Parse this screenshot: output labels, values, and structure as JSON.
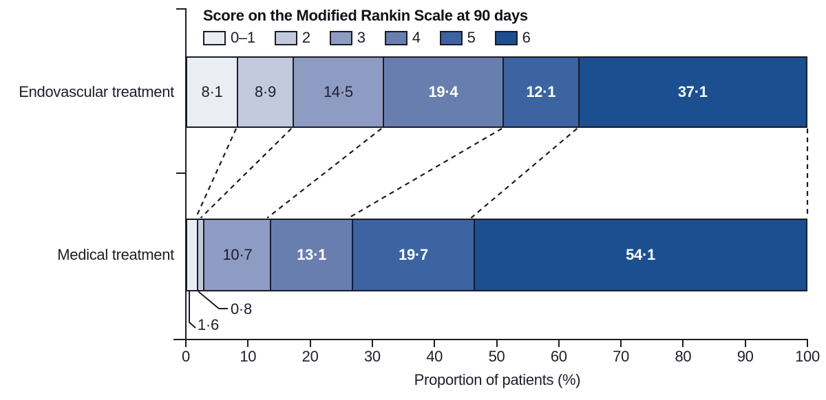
{
  "legend": {
    "title": "Score on the Modified Rankin Scale at 90 days"
  },
  "chart_data": {
    "type": "bar",
    "stacked": true,
    "orientation": "horizontal",
    "title": "Score on the Modified Rankin Scale at 90 days",
    "categories": [
      "Endovascular treatment",
      "Medical treatment"
    ],
    "series": [
      {
        "name": "0–1",
        "color": "#ebedf4",
        "label_color": "dark",
        "values": [
          8.1,
          1.6
        ]
      },
      {
        "name": "2",
        "color": "#c3cadd",
        "label_color": "dark",
        "values": [
          8.9,
          0.8
        ]
      },
      {
        "name": "3",
        "color": "#8e9cc4",
        "label_color": "dark",
        "values": [
          14.5,
          10.7
        ]
      },
      {
        "name": "4",
        "color": "#687eae",
        "label_color": "white",
        "values": [
          19.4,
          13.1
        ]
      },
      {
        "name": "5",
        "color": "#3c63a2",
        "label_color": "white",
        "values": [
          12.1,
          19.7
        ]
      },
      {
        "name": "6",
        "color": "#1b4f90",
        "label_color": "white",
        "values": [
          37.1,
          54.1
        ]
      }
    ],
    "xlabel": "Proportion of patients (%)",
    "xlim": [
      0,
      100
    ],
    "xticks": [
      0,
      10,
      20,
      30,
      40,
      50,
      60,
      70,
      80,
      90,
      100
    ],
    "decimal_separator": "·",
    "callouts": [
      {
        "category": "Medical treatment",
        "score": "0–1",
        "value": 1.6
      },
      {
        "category": "Medical treatment",
        "score": "2",
        "value": 0.8
      }
    ],
    "legend_position": "top",
    "grid": false,
    "connectors": "dashed"
  }
}
